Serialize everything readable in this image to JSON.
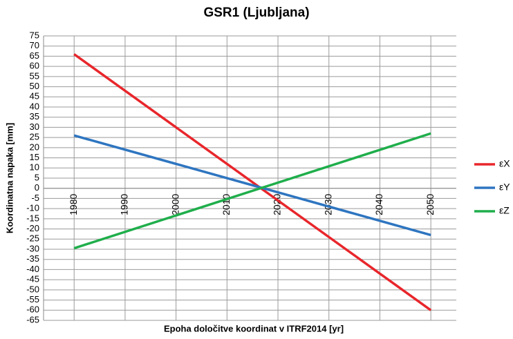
{
  "chart_data": {
    "type": "line",
    "title": "GSR1 (Ljubljana)",
    "x_label": "Epoha določitve koordinat v ITRF2014 [yr]",
    "y_label": "Koordinatna napaka [mm]",
    "x": [
      1980,
      2050
    ],
    "series": [
      {
        "name": "εX",
        "color": "#e8262b",
        "values": [
          66,
          -60
        ]
      },
      {
        "name": "εY",
        "color": "#2e75c0",
        "values": [
          26,
          -23
        ]
      },
      {
        "name": "εZ",
        "color": "#1fae4b",
        "values": [
          -29.5,
          27
        ]
      }
    ],
    "xlim": [
      1974,
      2055
    ],
    "xticks": [
      1980,
      1990,
      2000,
      2010,
      2020,
      2030,
      2040,
      2050
    ],
    "ylim": [
      -65,
      75
    ],
    "yticks": [
      -65,
      -60,
      -55,
      -50,
      -45,
      -40,
      -35,
      -30,
      -25,
      -20,
      -15,
      -10,
      -5,
      0,
      5,
      10,
      15,
      20,
      25,
      30,
      35,
      40,
      45,
      50,
      55,
      60,
      65,
      70,
      75
    ],
    "grid": true,
    "legend": "right"
  }
}
